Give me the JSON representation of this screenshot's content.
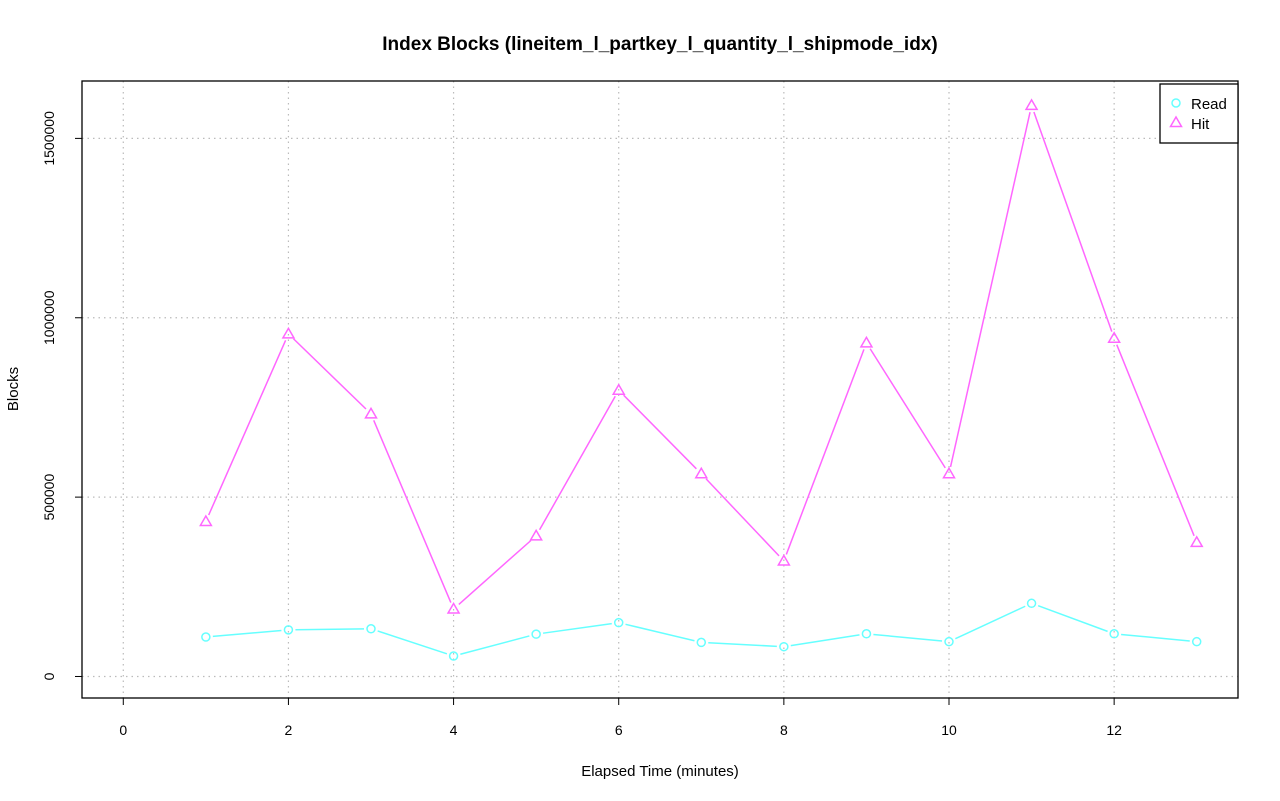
{
  "chart_data": {
    "type": "line",
    "title": "Index Blocks (lineitem_l_partkey_l_quantity_l_shipmode_idx)",
    "xlabel": "Elapsed Time (minutes)",
    "ylabel": "Blocks",
    "xlim": [
      -0.5,
      13.5
    ],
    "ylim": [
      -60000,
      1660000
    ],
    "x_ticks": [
      "0",
      "2",
      "4",
      "6",
      "8",
      "10",
      "12"
    ],
    "y_ticks": [
      "0",
      "500000",
      "1000000",
      "1500000"
    ],
    "grid": true,
    "legend_position": "top-right",
    "x": [
      1,
      2,
      3,
      4,
      5,
      6,
      7,
      8,
      9,
      10,
      11,
      12,
      13
    ],
    "series": [
      {
        "name": "Read",
        "color": "#66ffff",
        "marker": "circle",
        "values": [
          110000,
          130000,
          133000,
          57000,
          118000,
          150000,
          95000,
          83000,
          119000,
          97000,
          204000,
          119000,
          97000
        ]
      },
      {
        "name": "Hit",
        "color": "#ff66ff",
        "marker": "triangle",
        "values": [
          432000,
          955000,
          732000,
          188000,
          392000,
          798000,
          565000,
          322000,
          930000,
          565000,
          1592000,
          943000,
          374000
        ]
      }
    ]
  }
}
